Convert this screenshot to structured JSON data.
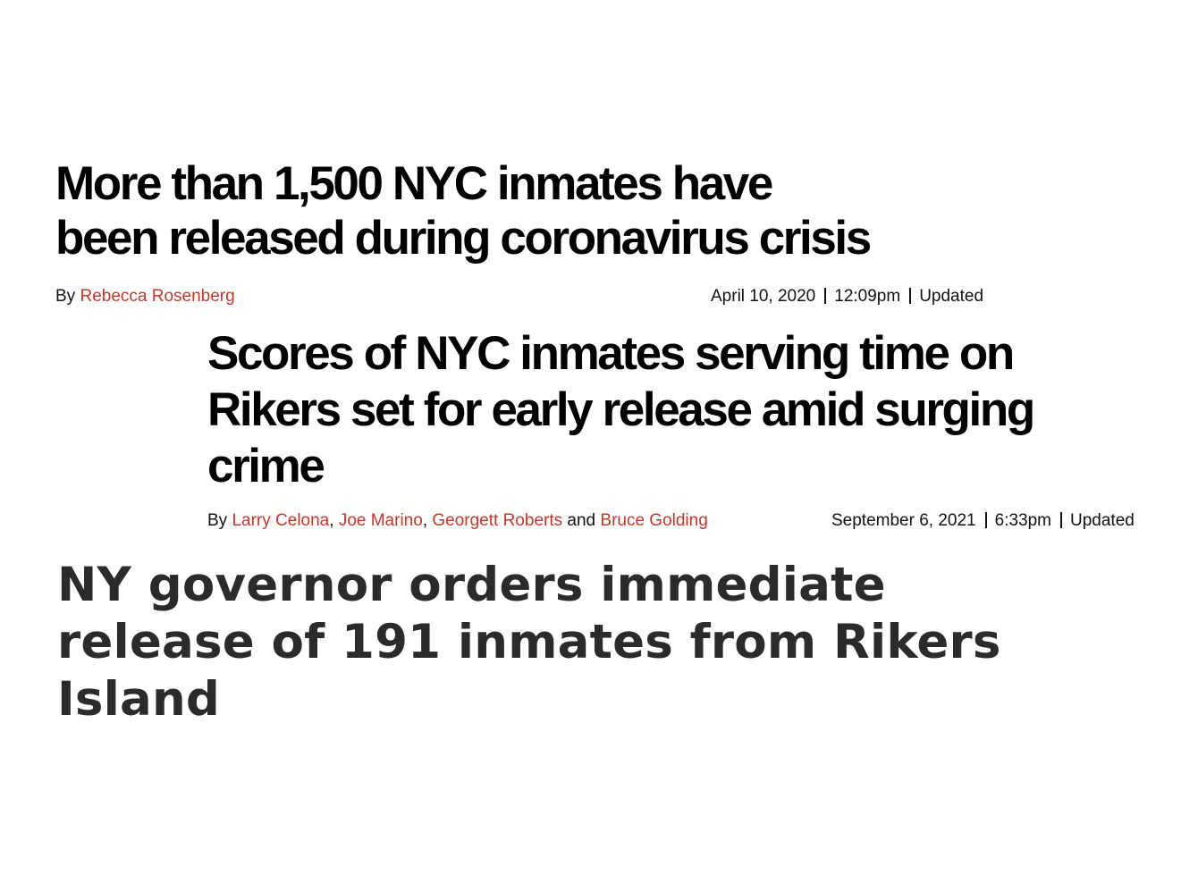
{
  "articles": [
    {
      "headline_lines": [
        "More than 1,500 NYC inmates have",
        "been released during coronavirus crisis"
      ],
      "by_label": "By",
      "authors": [
        "Rebecca Rosenberg"
      ],
      "date": "April 10, 2020",
      "time": "12:09pm",
      "updated_label": "Updated"
    },
    {
      "headline_lines": [
        "Scores of NYC inmates serving time on",
        "Rikers set for early release amid surging",
        "crime"
      ],
      "by_label": "By",
      "authors": [
        "Larry Celona",
        "Joe Marino",
        "Georgett Roberts",
        "Bruce Golding"
      ],
      "author_separators": [
        ", ",
        ", ",
        " and "
      ],
      "date": "September 6, 2021",
      "time": "6:33pm",
      "updated_label": "Updated"
    },
    {
      "headline_lines": [
        "NY governor orders immediate",
        "release of 191 inmates from Rikers",
        "Island"
      ]
    }
  ],
  "colors": {
    "author_link": "#c0392b",
    "headline": "#000000",
    "headline_gray": "#2b2b2b"
  }
}
